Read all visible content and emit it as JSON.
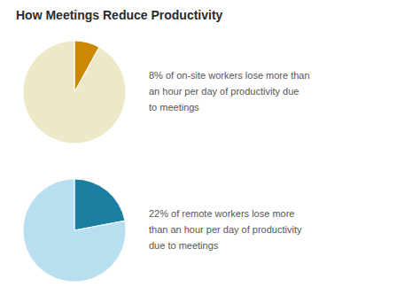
{
  "chart_data": [
    {
      "type": "pie",
      "title": "How Meetings Reduce Productivity",
      "values": [
        8,
        92
      ],
      "colors": [
        "#cc8800",
        "#ede8c8"
      ],
      "annotations": [
        "8% of on-site workers lose more than\nan hour per day of productivity due\nto meetings"
      ]
    },
    {
      "type": "pie",
      "values": [
        22,
        78
      ],
      "colors": [
        "#1a7fa0",
        "#b8dff0"
      ],
      "annotations": [
        "22% of remote workers lose more\nthan an hour per day of productivity\ndue to meetings"
      ]
    }
  ]
}
